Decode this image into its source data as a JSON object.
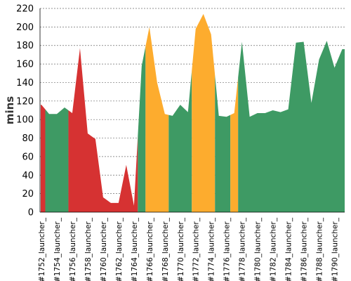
{
  "chart_data": {
    "type": "area",
    "ylabel": "mins",
    "ylim": [
      0,
      220
    ],
    "yticks": [
      0,
      20,
      40,
      60,
      80,
      100,
      120,
      140,
      160,
      180,
      200,
      220
    ],
    "grid": true,
    "x_tick_labels": [
      "#1752_launcher_",
      "#1754_launcher_",
      "#1756_launcher_",
      "#1758_launcher_",
      "#1760_launcher_",
      "#1762_launcher_",
      "#1764_launcher_",
      "#1766_launcher_",
      "#1768_launcher_",
      "#1770_launcher_",
      "#1772_launcher_",
      "#1774_launcher_",
      "#1776_launcher_",
      "#1778_launcher_",
      "#1780_launcher_",
      "#1782_launcher_",
      "#1784_launcher_",
      "#1786_launcher_",
      "#1788_launcher_",
      "#1790_launcher_"
    ],
    "builds": [
      1752,
      1753,
      1754,
      1755,
      1756,
      1757,
      1758,
      1759,
      1760,
      1761,
      1762,
      1763,
      1764,
      1765,
      1766,
      1767,
      1768,
      1769,
      1770,
      1771,
      1772,
      1773,
      1774,
      1775,
      1776,
      1777,
      1778,
      1779,
      1780,
      1781,
      1782,
      1783,
      1784,
      1785,
      1786,
      1787,
      1788,
      1789,
      1790,
      1791
    ],
    "values": [
      116,
      106,
      106,
      113,
      107,
      177,
      85,
      79,
      16,
      10,
      10,
      51,
      7,
      158,
      200,
      140,
      106,
      104,
      116,
      108,
      198,
      214,
      192,
      104,
      103,
      107,
      184,
      103,
      107,
      107,
      110,
      108,
      111,
      183,
      184,
      118,
      165,
      185,
      156,
      176
    ],
    "statuses": [
      "failed",
      "success",
      "success",
      "success",
      "failed",
      "failed",
      "failed",
      "failed",
      "failed",
      "failed",
      "failed",
      "failed",
      "failed",
      "success",
      "unstable",
      "unstable",
      "unstable",
      "success",
      "success",
      "success",
      "unstable",
      "unstable",
      "unstable",
      "success",
      "success",
      "unstable",
      "success",
      "success",
      "success",
      "success",
      "success",
      "success",
      "success",
      "success",
      "success",
      "success",
      "success",
      "success",
      "success",
      "success"
    ],
    "colors": {
      "success": "#3e9a64",
      "failed": "#d63232",
      "unstable": "#fdac2e"
    }
  }
}
